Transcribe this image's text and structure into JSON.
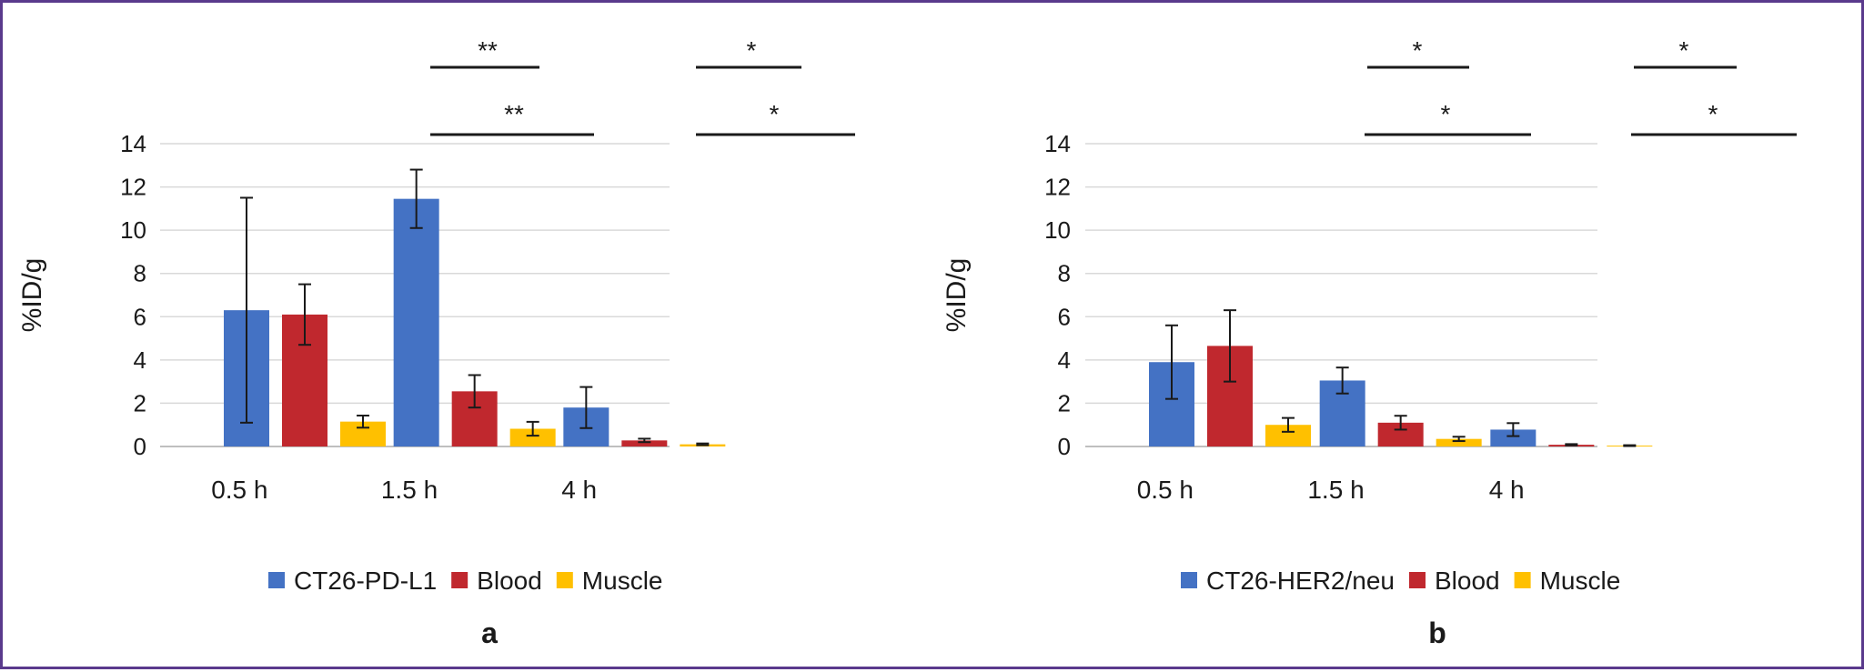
{
  "colors": {
    "blue": "#4472c4",
    "red": "#c0282e",
    "yellow": "#ffc000",
    "grid": "#d9d9d9",
    "axis": "#bfbfbf"
  },
  "chart_data": [
    {
      "type": "bar",
      "panel_label": "a",
      "ylabel": "%ID/g",
      "ylim": [
        0,
        14
      ],
      "yticks": [
        0,
        2,
        4,
        6,
        8,
        10,
        12,
        14
      ],
      "categories": [
        "0.5 h",
        "1.5 h",
        "4 h"
      ],
      "grid": true,
      "legend_position": "bottom",
      "series": [
        {
          "name": "CT26-PD-L1",
          "color": "#4472c4",
          "values": [
            6.3,
            11.45,
            1.8
          ],
          "errors": [
            5.2,
            1.35,
            0.95
          ]
        },
        {
          "name": "Blood",
          "color": "#c0282e",
          "values": [
            6.1,
            2.55,
            0.28
          ],
          "errors": [
            1.4,
            0.75,
            0.08
          ]
        },
        {
          "name": "Muscle",
          "color": "#ffc000",
          "values": [
            1.15,
            0.82,
            0.1
          ],
          "errors": [
            0.28,
            0.32,
            0.04
          ]
        }
      ],
      "significance": [
        {
          "category": 1,
          "from_series": 0,
          "to_series": 1,
          "level": "upper",
          "label": "**"
        },
        {
          "category": 1,
          "from_series": 0,
          "to_series": 2,
          "level": "lower",
          "label": "**"
        },
        {
          "category": 2,
          "from_series": 0,
          "to_series": 1,
          "level": "upper",
          "label": "*"
        },
        {
          "category": 2,
          "from_series": 0,
          "to_series": 2,
          "level": "lower",
          "label": "*"
        }
      ]
    },
    {
      "type": "bar",
      "panel_label": "b",
      "ylabel": "%ID/g",
      "ylim": [
        0,
        14
      ],
      "yticks": [
        0,
        2,
        4,
        6,
        8,
        10,
        12,
        14
      ],
      "categories": [
        "0.5 h",
        "1.5 h",
        "4 h"
      ],
      "grid": true,
      "legend_position": "bottom",
      "series": [
        {
          "name": "CT26-HER2/neu",
          "color": "#4472c4",
          "values": [
            3.9,
            3.05,
            0.78
          ],
          "errors": [
            1.7,
            0.6,
            0.3
          ]
        },
        {
          "name": "Blood",
          "color": "#c0282e",
          "values": [
            4.65,
            1.1,
            0.08
          ],
          "errors": [
            1.65,
            0.32,
            0.03
          ]
        },
        {
          "name": "Muscle",
          "color": "#ffc000",
          "values": [
            1.0,
            0.35,
            0.04
          ],
          "errors": [
            0.32,
            0.1,
            0.02
          ]
        }
      ],
      "significance": [
        {
          "category": 1,
          "from_series": 0,
          "to_series": 1,
          "level": "upper",
          "label": "*"
        },
        {
          "category": 1,
          "from_series": 0,
          "to_series": 2,
          "level": "lower",
          "label": "*"
        },
        {
          "category": 2,
          "from_series": 0,
          "to_series": 1,
          "level": "upper",
          "label": "*"
        },
        {
          "category": 2,
          "from_series": 0,
          "to_series": 2,
          "level": "lower",
          "label": "*"
        }
      ]
    }
  ]
}
